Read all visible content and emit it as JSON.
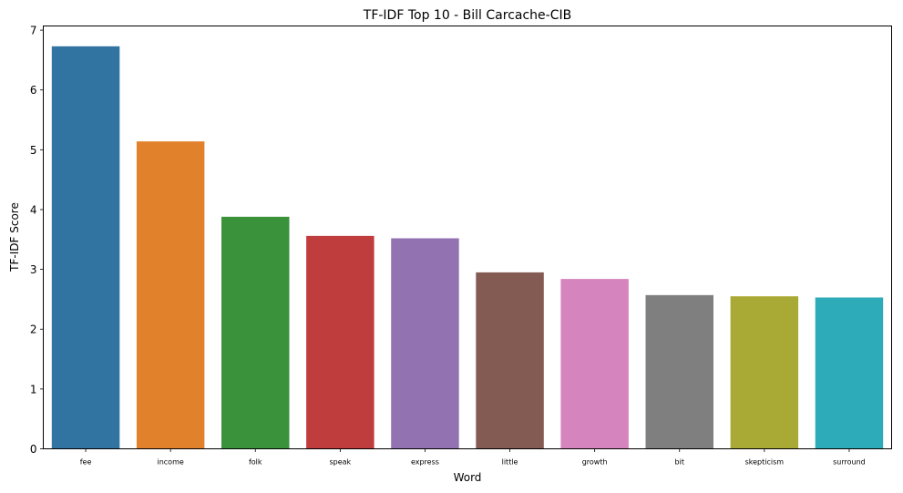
{
  "chart_data": {
    "type": "bar",
    "title": "TF-IDF Top 10 - Bill Carcache-CIB",
    "xlabel": "Word",
    "ylabel": "TF-IDF Score",
    "ylim": [
      0,
      7.07
    ],
    "yticks": [
      0,
      1,
      2,
      3,
      4,
      5,
      6,
      7
    ],
    "grid": false,
    "categories": [
      "fee",
      "income",
      "folk",
      "speak",
      "express",
      "little",
      "growth",
      "bit",
      "skepticism",
      "surround"
    ],
    "values": [
      6.73,
      5.14,
      3.88,
      3.56,
      3.52,
      2.95,
      2.84,
      2.57,
      2.55,
      2.53
    ],
    "colors": [
      "#3274a1",
      "#e1812c",
      "#3a923a",
      "#c03d3e",
      "#9372b2",
      "#845b53",
      "#d684bd",
      "#7f7f7f",
      "#a9aa35",
      "#2eabb8"
    ]
  }
}
